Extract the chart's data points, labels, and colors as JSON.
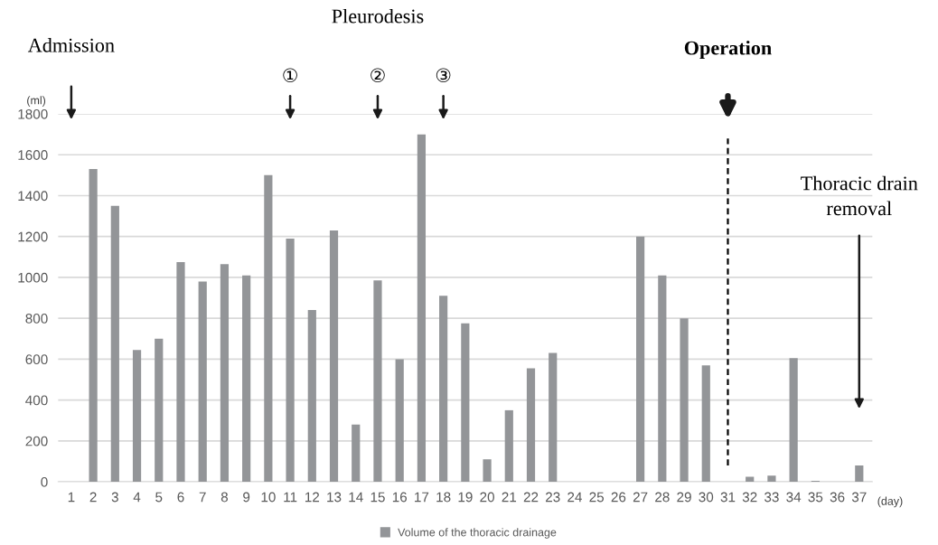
{
  "chart_data": {
    "type": "bar",
    "categories": [
      "1",
      "2",
      "3",
      "4",
      "5",
      "6",
      "7",
      "8",
      "9",
      "10",
      "11",
      "12",
      "13",
      "14",
      "15",
      "16",
      "17",
      "18",
      "19",
      "20",
      "21",
      "22",
      "23",
      "24",
      "25",
      "26",
      "27",
      "28",
      "29",
      "30",
      "31",
      "32",
      "33",
      "34",
      "35",
      "36",
      "37"
    ],
    "series": [
      {
        "name": "Volume of the thoracic drainage",
        "color": "#939598",
        "values": [
          0,
          1530,
          1350,
          645,
          700,
          1075,
          980,
          1065,
          1010,
          1500,
          1190,
          840,
          1230,
          280,
          985,
          600,
          1700,
          910,
          775,
          110,
          350,
          555,
          630,
          0,
          0,
          0,
          1200,
          1010,
          800,
          570,
          0,
          25,
          30,
          605,
          5,
          0,
          80
        ]
      }
    ],
    "ylabel": "(ml)",
    "xlabel": "(day)",
    "ylim": [
      0,
      1800
    ],
    "yticks": [
      0,
      200,
      400,
      600,
      800,
      1000,
      1200,
      1400,
      1600,
      1800
    ],
    "grid": "y",
    "legend": "bottom",
    "ref_lines": [
      {
        "axis": "x",
        "value": "31",
        "color": "#000000",
        "line_style": "dashed"
      }
    ],
    "annotations": [
      "Admission",
      "Pleurodesis",
      "①",
      "②",
      "③",
      "Operation",
      "Thoracic drain\nremoval"
    ]
  }
}
